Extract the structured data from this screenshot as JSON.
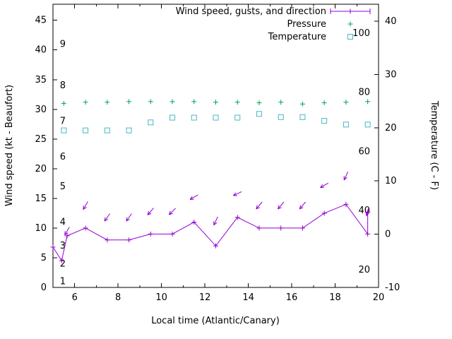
{
  "chart_data": {
    "type": "line",
    "title": "",
    "xlabel": "Local time (Atlantic/Canary)",
    "ylabel_left": "Wind speed (kt - Beaufort)",
    "ylabel_right": "Temperature (C - F)",
    "background": "#ffffff",
    "x_range": [
      5,
      20
    ],
    "x_major_ticks": [
      6,
      8,
      10,
      12,
      14,
      16,
      18,
      20
    ],
    "x_minor_step": 1,
    "left_axis": {
      "range": [
        0,
        47.7
      ],
      "ticks": [
        0,
        5,
        10,
        15,
        20,
        25,
        30,
        35,
        40,
        45
      ]
    },
    "right_axis": {
      "range": [
        -10,
        43.2
      ],
      "ticks": [
        -10,
        0,
        10,
        20,
        30,
        40
      ]
    },
    "beaufort_labels": [
      {
        "label": "1",
        "kt": 1
      },
      {
        "label": "2",
        "kt": 4
      },
      {
        "label": "3",
        "kt": 7
      },
      {
        "label": "4",
        "kt": 11
      },
      {
        "label": "5",
        "kt": 17
      },
      {
        "label": "6",
        "kt": 22
      },
      {
        "label": "7",
        "kt": 28
      },
      {
        "label": "8",
        "kt": 34
      },
      {
        "label": "9",
        "kt": 41
      }
    ],
    "fahrenheit_labels": [
      {
        "label": "100",
        "f": 100
      },
      {
        "label": "80",
        "f": 80
      },
      {
        "label": "60",
        "f": 60
      },
      {
        "label": "40",
        "f": 40
      },
      {
        "label": "20",
        "f": 20
      }
    ],
    "legend": [
      {
        "label": "Wind speed, gusts, and direction",
        "series": "wind",
        "marker": "errorbar-line",
        "color": "#9400d3"
      },
      {
        "label": "Pressure",
        "series": "pressure",
        "marker": "plus",
        "color": "#00a060"
      },
      {
        "label": "Temperature",
        "series": "temperature",
        "marker": "open-square",
        "color": "#45b8c4"
      }
    ],
    "series": {
      "wind": {
        "color": "#9400d3",
        "x": [
          5.0,
          5.4,
          5.65,
          6.5,
          7.5,
          8.5,
          9.5,
          10.5,
          11.5,
          12.5,
          13.5,
          14.5,
          15.5,
          16.5,
          17.5,
          18.5,
          19.5
        ],
        "kt": [
          6.8,
          4.5,
          8.7,
          10,
          8,
          8,
          9,
          9,
          11,
          7,
          11.8,
          10,
          10,
          10,
          12.5,
          14,
          9
        ]
      },
      "wind_gust_bar": {
        "x": 19.5,
        "kt_from": 9,
        "kt_to": 12.7
      },
      "gusts": {
        "color": "#9400d3",
        "x": [
          5.65,
          6.5,
          7.5,
          8.5,
          9.5,
          10.5,
          11.5,
          12.5,
          13.5,
          14.5,
          15.5,
          16.5,
          17.5,
          18.5,
          19.5
        ],
        "kt": [
          9.5,
          13.8,
          11.8,
          11.8,
          12.8,
          12.8,
          15.2,
          11.2,
          15.8,
          13.8,
          13.8,
          13.8,
          17.2,
          18.8,
          12.8
        ],
        "arrow_angle_deg": [
          210,
          210,
          215,
          215,
          220,
          225,
          240,
          205,
          245,
          220,
          220,
          220,
          240,
          205,
          195
        ]
      },
      "pressure": {
        "color": "#00a060",
        "x": [
          5.5,
          6.5,
          7.5,
          8.5,
          9.5,
          10.5,
          11.5,
          12.5,
          13.5,
          14.5,
          15.5,
          16.5,
          17.5,
          18.5,
          19.5
        ],
        "value_on_left_axis": [
          31.0,
          31.2,
          31.2,
          31.3,
          31.3,
          31.3,
          31.3,
          31.2,
          31.2,
          31.1,
          31.2,
          30.9,
          31.1,
          31.2,
          31.3
        ]
      },
      "temperature": {
        "color": "#45b8c4",
        "x": [
          5.5,
          6.5,
          7.5,
          8.5,
          9.5,
          10.5,
          11.5,
          12.5,
          13.5,
          14.5,
          15.5,
          16.5,
          17.5,
          18.5,
          19.5
        ],
        "celsius": [
          19.5,
          19.5,
          19.5,
          19.5,
          21.0,
          21.9,
          21.9,
          21.9,
          21.9,
          22.6,
          22.0,
          22.0,
          21.3,
          20.6,
          20.6
        ]
      }
    }
  }
}
